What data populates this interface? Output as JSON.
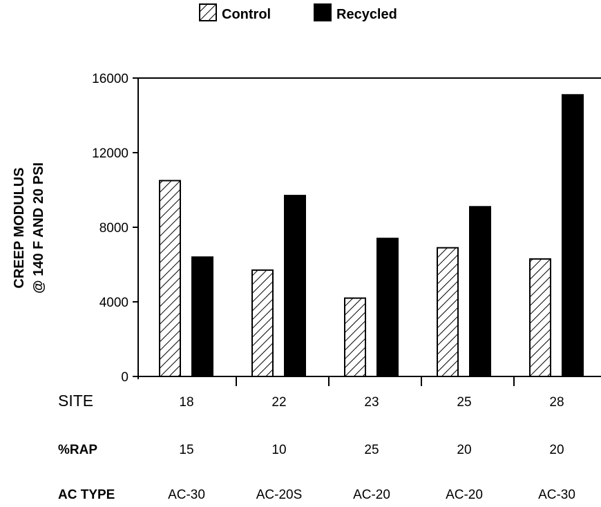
{
  "chart_data": {
    "type": "bar",
    "ylabel_lines": [
      "CREEP MODULUS",
      "@ 140 F AND 20 PSI"
    ],
    "ylim": [
      0,
      16000
    ],
    "yticks": [
      0,
      4000,
      8000,
      12000,
      16000
    ],
    "yticks_labels": [
      "0",
      "4000",
      "8000",
      "12000",
      "16000"
    ],
    "grid": false,
    "legend_position": "top-center",
    "categories": [
      "18",
      "22",
      "23",
      "25",
      "28"
    ],
    "series": [
      {
        "name": "Control",
        "values": [
          10500,
          5700,
          4200,
          6900,
          6300
        ],
        "pattern": "hatched",
        "color": "#000000"
      },
      {
        "name": "Recycled",
        "values": [
          6400,
          9700,
          7400,
          9100,
          15100
        ],
        "pattern": "solid",
        "color": "#000000"
      }
    ],
    "table_rows": [
      {
        "label": "SITE",
        "values": [
          "18",
          "22",
          "23",
          "25",
          "28"
        ]
      },
      {
        "label": "%RAP",
        "values": [
          "15",
          "10",
          "25",
          "20",
          "20"
        ]
      },
      {
        "label": "AC TYPE",
        "values": [
          "AC-30",
          "AC-20S",
          "AC-20",
          "AC-20",
          "AC-30"
        ]
      }
    ]
  }
}
